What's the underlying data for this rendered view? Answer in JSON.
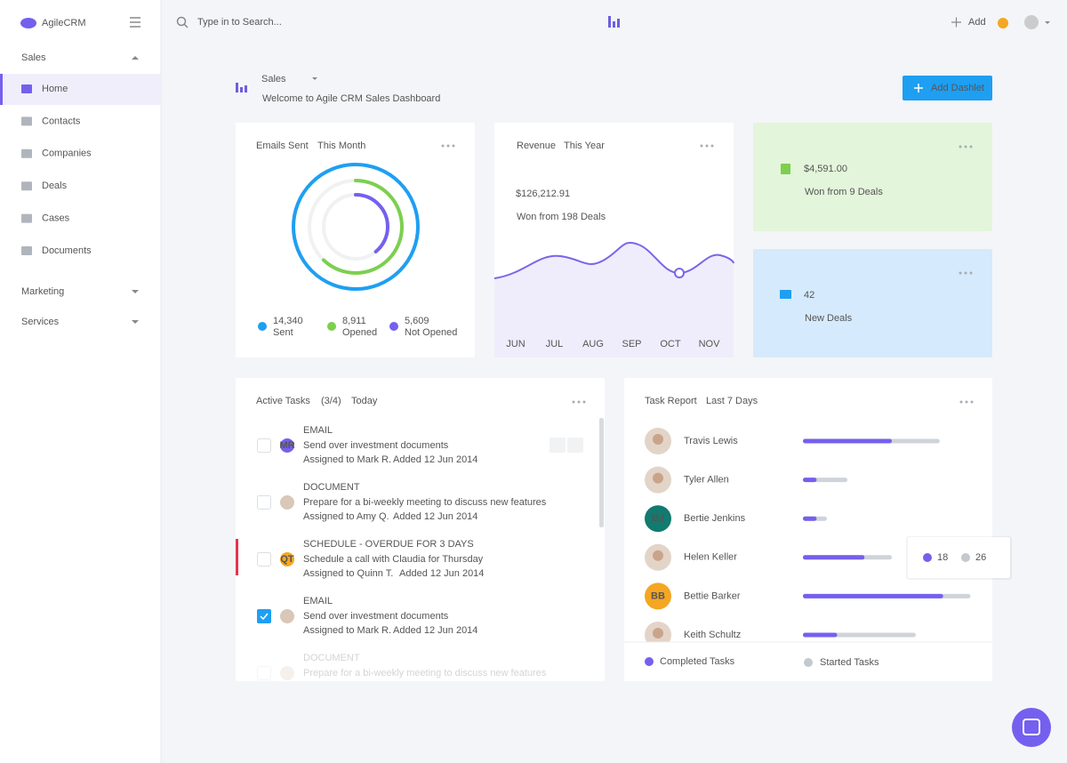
{
  "sidebar": {
    "brand": "AgileCRM",
    "sections": [
      {
        "title": "Sales",
        "items": [
          "Home",
          "Contacts",
          "Companies",
          "Deals",
          "Cases",
          "Documents"
        ]
      },
      {
        "title": "Marketing"
      },
      {
        "title": "Services"
      }
    ]
  },
  "topbar": {
    "search_placeholder": "Type in to Search...",
    "add": "Add"
  },
  "header": {
    "title": "Sales",
    "subtitle": "Welcome to Agile CRM Sales Dashboard",
    "button": "Add Dashlet"
  },
  "emails": {
    "title": "Emails Sent",
    "period": "This Month",
    "stats": [
      {
        "value": 14340,
        "label": "14,340",
        "name": "Sent",
        "color": "#1e9ff2"
      },
      {
        "value": 8911,
        "label": "8,911",
        "name": "Opened",
        "color": "#7ccf4f"
      },
      {
        "value": 5609,
        "label": "5,609",
        "name": "Not Opened",
        "color": "#7460ee"
      }
    ]
  },
  "revenue": {
    "title": "Revenue",
    "period": "This Year",
    "amount": "$126,212.91",
    "note": "Won from 198 Deals",
    "months": [
      "JUN",
      "JUL",
      "AUG",
      "SEP",
      "OCT",
      "NOV"
    ]
  },
  "won": {
    "amount": "$4,591.00",
    "note": "Won from 9 Deals"
  },
  "deals": {
    "count": 42,
    "note": "New Deals"
  },
  "tasks": {
    "title": "Active Tasks",
    "count": "(3/4)",
    "period": "Today",
    "items": [
      {
        "type": "EMAIL",
        "title": "Send over investment documents",
        "assigned": "Assigned to Mark R.",
        "added": "Added 12 Jun 2014",
        "initials": "MR",
        "done": false
      },
      {
        "type": "DOCUMENT",
        "title": "Prepare for a bi-weekly meeting to discuss new features",
        "assigned": "Assigned to Amy Q.",
        "added": "Added 12 Jun 2014",
        "done": false
      },
      {
        "type": "SCHEDULE - OVERDUE FOR 3 DAYS",
        "title": "Schedule a call with Claudia for Thursday",
        "assigned": "Assigned to Quinn T.",
        "added": "Added 12 Jun 2014",
        "initials": "QT",
        "done": false,
        "overdue": true
      },
      {
        "type": "EMAIL",
        "title": "Send over investment documents",
        "assigned": "Assigned to Mark R.",
        "added": "Added 12 Jun 2014",
        "done": true
      },
      {
        "type": "DOCUMENT",
        "title": "Prepare for a bi-weekly meeting to discuss new features",
        "done": false
      }
    ]
  },
  "report": {
    "title": "Task Report",
    "period": "Last 7 Days",
    "people": [
      {
        "name": "Travis Lewis",
        "completed": 26,
        "started": 40
      },
      {
        "name": "Tyler Allen",
        "completed": 4,
        "started": 13
      },
      {
        "name": "Bertie Jenkins",
        "initials": "BJ",
        "completed": 4,
        "started": 7
      },
      {
        "name": "Helen Keller",
        "completed": 18,
        "started": 26
      },
      {
        "name": "Bettie Barker",
        "initials": "BB",
        "completed": 41,
        "started": 49
      },
      {
        "name": "Keith Schultz",
        "completed": 10,
        "started": 33
      }
    ],
    "legend": [
      "Completed Tasks",
      "Started Tasks"
    ]
  }
}
